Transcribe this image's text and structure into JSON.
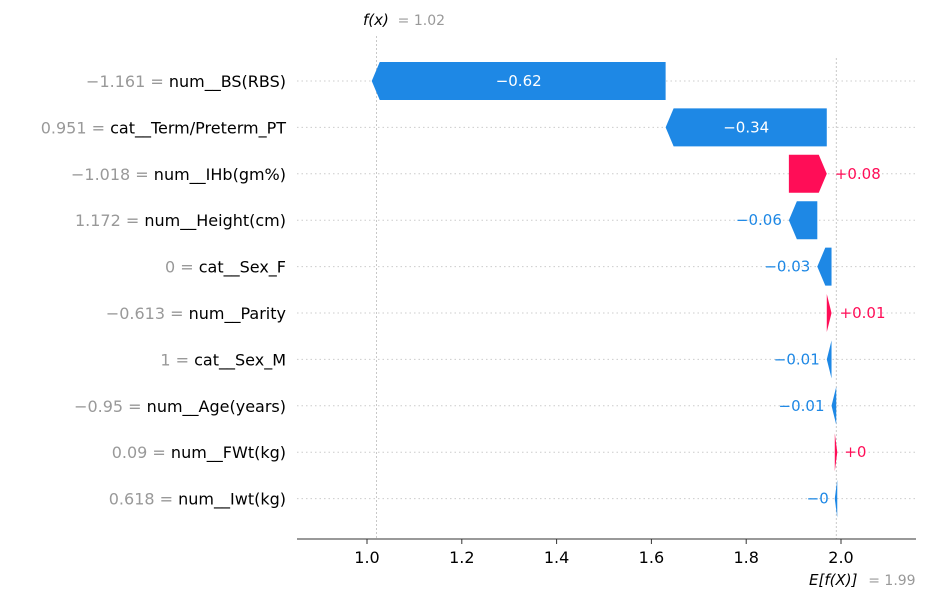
{
  "chart_data": {
    "type": "waterfall",
    "fx_label": "f(x)",
    "fx_value": "= 1.02",
    "efx_label": "E[f(X)]",
    "efx_value": "= 1.99",
    "base_value": 1.99,
    "final_value": 1.02,
    "xlim": [
      0.85,
      2.15
    ],
    "xticks": [
      "1.0",
      "1.2",
      "1.4",
      "1.6",
      "1.8",
      "2.0"
    ],
    "xtick_values": [
      1.0,
      1.2,
      1.4,
      1.6,
      1.8,
      2.0
    ],
    "grid": "horizontal dotted",
    "colors": {
      "positive": "#ff0d57",
      "negative": "#1e88e5"
    },
    "features": [
      {
        "value": "−1.161 =",
        "name": "num__BS(RBS)",
        "contribution": -0.62,
        "label": "−0.62"
      },
      {
        "value": "0.951 =",
        "name": "cat__Term/Preterm_PT",
        "contribution": -0.34,
        "label": "−0.34"
      },
      {
        "value": "−1.018 =",
        "name": "num__IHb(gm%)",
        "contribution": 0.08,
        "label": "+0.08"
      },
      {
        "value": "1.172 =",
        "name": "num__Height(cm)",
        "contribution": -0.06,
        "label": "−0.06"
      },
      {
        "value": "0 =",
        "name": "cat__Sex_F",
        "contribution": -0.03,
        "label": "−0.03"
      },
      {
        "value": "−0.613 =",
        "name": "num__Parity",
        "contribution": 0.01,
        "label": "+0.01"
      },
      {
        "value": "1 =",
        "name": "cat__Sex_M",
        "contribution": -0.01,
        "label": "−0.01"
      },
      {
        "value": "−0.95 =",
        "name": "num__Age(years)",
        "contribution": -0.01,
        "label": "−0.01"
      },
      {
        "value": "0.09 =",
        "name": "num__FWt(kg)",
        "contribution": 0.001,
        "label": "+0"
      },
      {
        "value": "0.618 =",
        "name": "num__Iwt(kg)",
        "contribution": -0.001,
        "label": "−0"
      }
    ]
  }
}
